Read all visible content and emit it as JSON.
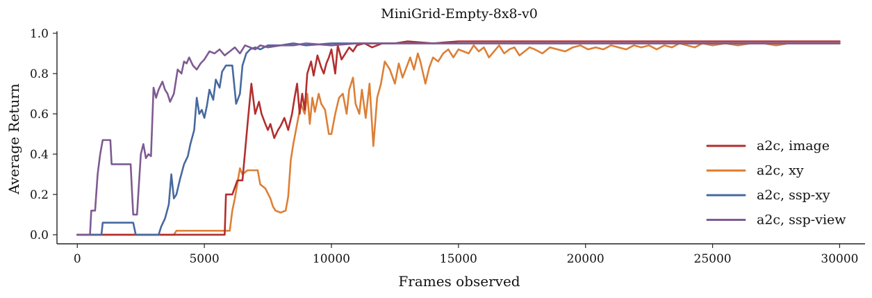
{
  "chart_data": {
    "type": "line",
    "title": "MiniGrid-Empty-8x8-v0",
    "xlabel": "Frames observed",
    "ylabel": "Average Return",
    "xlim": [
      -800,
      31000
    ],
    "ylim": [
      -0.045,
      1.01
    ],
    "xticks": [
      0,
      5000,
      10000,
      15000,
      20000,
      25000,
      30000
    ],
    "xtick_labels": [
      "0",
      "5000",
      "10000",
      "15000",
      "20000",
      "25000",
      "30000"
    ],
    "yticks": [
      0.0,
      0.2,
      0.4,
      0.6,
      0.8,
      1.0
    ],
    "ytick_labels": [
      "0.0",
      "0.2",
      "0.4",
      "0.6",
      "0.8",
      "1.0"
    ],
    "grid": false,
    "legend_position": "center-right",
    "series": [
      {
        "name": "a2c, image",
        "color": "#b22e2e",
        "points": [
          [
            0,
            0
          ],
          [
            5800,
            0
          ],
          [
            5850,
            0.2
          ],
          [
            6100,
            0.2
          ],
          [
            6300,
            0.27
          ],
          [
            6500,
            0.27
          ],
          [
            6700,
            0.55
          ],
          [
            6850,
            0.75
          ],
          [
            7000,
            0.6
          ],
          [
            7150,
            0.66
          ],
          [
            7250,
            0.6
          ],
          [
            7400,
            0.55
          ],
          [
            7500,
            0.52
          ],
          [
            7600,
            0.55
          ],
          [
            7750,
            0.48
          ],
          [
            7900,
            0.52
          ],
          [
            8000,
            0.54
          ],
          [
            8150,
            0.58
          ],
          [
            8300,
            0.52
          ],
          [
            8450,
            0.6
          ],
          [
            8550,
            0.68
          ],
          [
            8650,
            0.75
          ],
          [
            8750,
            0.6
          ],
          [
            8850,
            0.7
          ],
          [
            8950,
            0.62
          ],
          [
            9050,
            0.8
          ],
          [
            9200,
            0.86
          ],
          [
            9300,
            0.79
          ],
          [
            9450,
            0.89
          ],
          [
            9600,
            0.83
          ],
          [
            9700,
            0.8
          ],
          [
            9800,
            0.85
          ],
          [
            9900,
            0.88
          ],
          [
            10000,
            0.92
          ],
          [
            10150,
            0.8
          ],
          [
            10250,
            0.94
          ],
          [
            10400,
            0.87
          ],
          [
            10550,
            0.9
          ],
          [
            10700,
            0.93
          ],
          [
            10850,
            0.91
          ],
          [
            11000,
            0.94
          ],
          [
            11300,
            0.95
          ],
          [
            11600,
            0.93
          ],
          [
            12000,
            0.95
          ],
          [
            12500,
            0.95
          ],
          [
            13000,
            0.96
          ],
          [
            14000,
            0.95
          ],
          [
            15000,
            0.96
          ],
          [
            16000,
            0.96
          ],
          [
            18000,
            0.96
          ],
          [
            20000,
            0.96
          ],
          [
            22000,
            0.96
          ],
          [
            24000,
            0.96
          ],
          [
            26000,
            0.96
          ],
          [
            28000,
            0.96
          ],
          [
            30000,
            0.96
          ]
        ]
      },
      {
        "name": "a2c, xy",
        "color": "#dd7f35",
        "points": [
          [
            0,
            0
          ],
          [
            3800,
            0
          ],
          [
            3900,
            0.02
          ],
          [
            4500,
            0.02
          ],
          [
            5000,
            0.02
          ],
          [
            5500,
            0.02
          ],
          [
            6000,
            0.02
          ],
          [
            6100,
            0.12
          ],
          [
            6200,
            0.18
          ],
          [
            6400,
            0.33
          ],
          [
            6500,
            0.3
          ],
          [
            6700,
            0.32
          ],
          [
            7100,
            0.32
          ],
          [
            7200,
            0.25
          ],
          [
            7400,
            0.23
          ],
          [
            7600,
            0.18
          ],
          [
            7700,
            0.14
          ],
          [
            7800,
            0.12
          ],
          [
            8000,
            0.11
          ],
          [
            8200,
            0.12
          ],
          [
            8300,
            0.19
          ],
          [
            8400,
            0.37
          ],
          [
            8500,
            0.45
          ],
          [
            8650,
            0.55
          ],
          [
            8800,
            0.65
          ],
          [
            8950,
            0.6
          ],
          [
            9050,
            0.7
          ],
          [
            9150,
            0.55
          ],
          [
            9250,
            0.68
          ],
          [
            9350,
            0.61
          ],
          [
            9500,
            0.7
          ],
          [
            9600,
            0.65
          ],
          [
            9750,
            0.62
          ],
          [
            9900,
            0.5
          ],
          [
            10000,
            0.5
          ],
          [
            10150,
            0.6
          ],
          [
            10300,
            0.68
          ],
          [
            10450,
            0.7
          ],
          [
            10600,
            0.6
          ],
          [
            10700,
            0.72
          ],
          [
            10850,
            0.78
          ],
          [
            10950,
            0.65
          ],
          [
            11100,
            0.6
          ],
          [
            11200,
            0.72
          ],
          [
            11350,
            0.58
          ],
          [
            11500,
            0.75
          ],
          [
            11650,
            0.44
          ],
          [
            11800,
            0.68
          ],
          [
            11950,
            0.75
          ],
          [
            12100,
            0.86
          ],
          [
            12300,
            0.82
          ],
          [
            12500,
            0.75
          ],
          [
            12650,
            0.85
          ],
          [
            12800,
            0.78
          ],
          [
            12950,
            0.83
          ],
          [
            13100,
            0.88
          ],
          [
            13250,
            0.82
          ],
          [
            13400,
            0.9
          ],
          [
            13500,
            0.86
          ],
          [
            13700,
            0.75
          ],
          [
            13850,
            0.83
          ],
          [
            14000,
            0.88
          ],
          [
            14200,
            0.86
          ],
          [
            14400,
            0.9
          ],
          [
            14600,
            0.92
          ],
          [
            14800,
            0.88
          ],
          [
            15000,
            0.92
          ],
          [
            15200,
            0.91
          ],
          [
            15400,
            0.9
          ],
          [
            15600,
            0.94
          ],
          [
            15800,
            0.91
          ],
          [
            16000,
            0.93
          ],
          [
            16200,
            0.88
          ],
          [
            16400,
            0.91
          ],
          [
            16600,
            0.94
          ],
          [
            16800,
            0.9
          ],
          [
            17000,
            0.92
          ],
          [
            17200,
            0.93
          ],
          [
            17400,
            0.89
          ],
          [
            17600,
            0.91
          ],
          [
            17800,
            0.93
          ],
          [
            18000,
            0.92
          ],
          [
            18300,
            0.9
          ],
          [
            18600,
            0.93
          ],
          [
            18900,
            0.92
          ],
          [
            19200,
            0.91
          ],
          [
            19500,
            0.93
          ],
          [
            19800,
            0.94
          ],
          [
            20100,
            0.92
          ],
          [
            20400,
            0.93
          ],
          [
            20700,
            0.92
          ],
          [
            21000,
            0.94
          ],
          [
            21300,
            0.93
          ],
          [
            21600,
            0.92
          ],
          [
            21900,
            0.94
          ],
          [
            22200,
            0.93
          ],
          [
            22500,
            0.94
          ],
          [
            22800,
            0.92
          ],
          [
            23100,
            0.94
          ],
          [
            23400,
            0.93
          ],
          [
            23700,
            0.95
          ],
          [
            24000,
            0.94
          ],
          [
            24300,
            0.93
          ],
          [
            24600,
            0.95
          ],
          [
            25000,
            0.94
          ],
          [
            25500,
            0.95
          ],
          [
            26000,
            0.94
          ],
          [
            26500,
            0.95
          ],
          [
            27000,
            0.95
          ],
          [
            27500,
            0.94
          ],
          [
            28000,
            0.95
          ],
          [
            28500,
            0.95
          ],
          [
            29000,
            0.95
          ],
          [
            29500,
            0.95
          ],
          [
            30000,
            0.95
          ]
        ]
      },
      {
        "name": "a2c, ssp-xy",
        "color": "#46699f",
        "points": [
          [
            0,
            0
          ],
          [
            950,
            0
          ],
          [
            1000,
            0.06
          ],
          [
            1500,
            0.06
          ],
          [
            2200,
            0.06
          ],
          [
            2300,
            0
          ],
          [
            3200,
            0
          ],
          [
            3300,
            0.04
          ],
          [
            3450,
            0.08
          ],
          [
            3600,
            0.15
          ],
          [
            3700,
            0.3
          ],
          [
            3800,
            0.18
          ],
          [
            3900,
            0.2
          ],
          [
            4050,
            0.28
          ],
          [
            4200,
            0.35
          ],
          [
            4350,
            0.39
          ],
          [
            4450,
            0.45
          ],
          [
            4600,
            0.52
          ],
          [
            4700,
            0.68
          ],
          [
            4800,
            0.6
          ],
          [
            4900,
            0.62
          ],
          [
            5000,
            0.58
          ],
          [
            5100,
            0.64
          ],
          [
            5200,
            0.72
          ],
          [
            5350,
            0.67
          ],
          [
            5450,
            0.77
          ],
          [
            5600,
            0.73
          ],
          [
            5700,
            0.81
          ],
          [
            5850,
            0.84
          ],
          [
            6100,
            0.84
          ],
          [
            6250,
            0.65
          ],
          [
            6400,
            0.7
          ],
          [
            6500,
            0.84
          ],
          [
            6650,
            0.9
          ],
          [
            6800,
            0.92
          ],
          [
            7000,
            0.93
          ],
          [
            7200,
            0.92
          ],
          [
            7500,
            0.94
          ],
          [
            8000,
            0.94
          ],
          [
            8500,
            0.95
          ],
          [
            9000,
            0.94
          ],
          [
            10000,
            0.95
          ],
          [
            11000,
            0.95
          ],
          [
            12000,
            0.95
          ],
          [
            14000,
            0.95
          ],
          [
            16000,
            0.95
          ],
          [
            18000,
            0.95
          ],
          [
            20000,
            0.95
          ],
          [
            22000,
            0.95
          ],
          [
            24000,
            0.95
          ],
          [
            26000,
            0.95
          ],
          [
            28000,
            0.95
          ],
          [
            30000,
            0.95
          ]
        ]
      },
      {
        "name": "a2c, ssp-view",
        "color": "#7f5a92",
        "points": [
          [
            0,
            0
          ],
          [
            500,
            0
          ],
          [
            550,
            0.12
          ],
          [
            700,
            0.12
          ],
          [
            800,
            0.3
          ],
          [
            900,
            0.4
          ],
          [
            1000,
            0.47
          ],
          [
            1300,
            0.47
          ],
          [
            1350,
            0.35
          ],
          [
            1800,
            0.35
          ],
          [
            2100,
            0.35
          ],
          [
            2150,
            0.22
          ],
          [
            2200,
            0.1
          ],
          [
            2350,
            0.1
          ],
          [
            2500,
            0.4
          ],
          [
            2600,
            0.45
          ],
          [
            2700,
            0.38
          ],
          [
            2800,
            0.4
          ],
          [
            2900,
            0.39
          ],
          [
            3000,
            0.73
          ],
          [
            3100,
            0.68
          ],
          [
            3200,
            0.72
          ],
          [
            3350,
            0.76
          ],
          [
            3450,
            0.72
          ],
          [
            3550,
            0.7
          ],
          [
            3650,
            0.66
          ],
          [
            3800,
            0.7
          ],
          [
            3950,
            0.82
          ],
          [
            4100,
            0.8
          ],
          [
            4200,
            0.86
          ],
          [
            4300,
            0.85
          ],
          [
            4400,
            0.88
          ],
          [
            4550,
            0.84
          ],
          [
            4700,
            0.82
          ],
          [
            4850,
            0.85
          ],
          [
            5000,
            0.87
          ],
          [
            5200,
            0.91
          ],
          [
            5400,
            0.9
          ],
          [
            5600,
            0.92
          ],
          [
            5800,
            0.89
          ],
          [
            6000,
            0.91
          ],
          [
            6200,
            0.93
          ],
          [
            6400,
            0.9
          ],
          [
            6600,
            0.94
          ],
          [
            6800,
            0.93
          ],
          [
            7000,
            0.92
          ],
          [
            7200,
            0.94
          ],
          [
            7500,
            0.93
          ],
          [
            8000,
            0.94
          ],
          [
            8500,
            0.94
          ],
          [
            9000,
            0.95
          ],
          [
            10000,
            0.94
          ],
          [
            11000,
            0.95
          ],
          [
            12000,
            0.95
          ],
          [
            13000,
            0.95
          ],
          [
            14000,
            0.95
          ],
          [
            16000,
            0.95
          ],
          [
            18000,
            0.95
          ],
          [
            20000,
            0.95
          ],
          [
            22000,
            0.95
          ],
          [
            24000,
            0.95
          ],
          [
            26000,
            0.95
          ],
          [
            28000,
            0.95
          ],
          [
            30000,
            0.95
          ]
        ]
      }
    ]
  }
}
